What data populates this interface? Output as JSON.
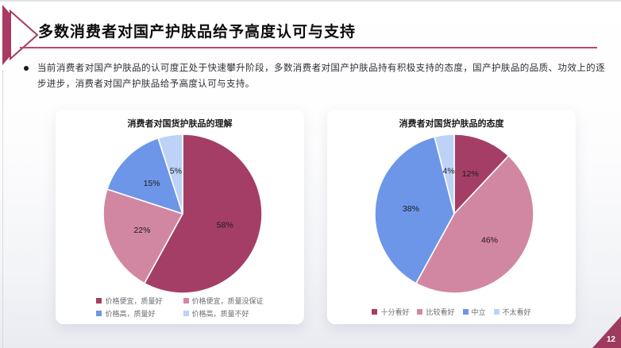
{
  "slide": {
    "title": "多数消费者对国产护肤品给予高度认可与支持",
    "bullet_text": "当前消费者对国产护肤品的认可度正处于快速攀升阶段，多数消费者对国产护肤品持有积极支持的态度，国产护肤品的品质、功效上的逐步进步，消费者对国产护肤品给予高度认可与支持。",
    "page_number": "12",
    "accent_color": "#a83a63",
    "rule_color": "#c34471"
  },
  "chart_data": [
    {
      "type": "pie",
      "title": "消费者对国货护肤品的理解",
      "categories": [
        "价格便宜，质量好",
        "价格便宜，质量没保证",
        "价格高，质量好",
        "价格高，质量不好"
      ],
      "values": [
        58,
        22,
        15,
        5
      ],
      "value_labels": [
        "58%",
        "22%",
        "15%",
        "5%"
      ],
      "colors": [
        "#a53e66",
        "#d187a2",
        "#6d96e9",
        "#bdd2f7"
      ],
      "start_angle_deg": 0,
      "direction": "clockwise",
      "legend_position": "bottom",
      "legend_columns": 2
    },
    {
      "type": "pie",
      "title": "消费者对国货护肤品的态度",
      "categories": [
        "十分看好",
        "比较看好",
        "中立",
        "不太看好"
      ],
      "values": [
        12,
        46,
        38,
        4
      ],
      "value_labels": [
        "12%",
        "46%",
        "38%",
        "4%"
      ],
      "colors": [
        "#a53e66",
        "#d187a2",
        "#6d96e9",
        "#bdd2f7"
      ],
      "start_angle_deg": 0,
      "direction": "clockwise",
      "legend_position": "bottom",
      "legend_columns": 4
    }
  ]
}
